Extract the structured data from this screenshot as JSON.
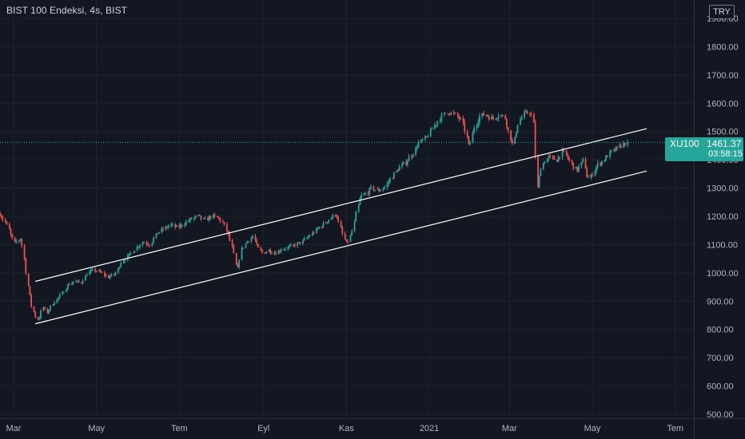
{
  "header": {
    "title": "BIST 100 Endeksi, 4s, BIST",
    "currency": "TRY"
  },
  "price_tag": {
    "symbol": "XU100",
    "value": "1461.37",
    "countdown": "03:58:15"
  },
  "colors": {
    "background": "#131722",
    "grid": "#1e222d",
    "up": "#26a69a",
    "down": "#ef5350",
    "text": "#b2b5be",
    "trendline": "#ffffff",
    "last_price_line": "#26a69a"
  },
  "chart_data": {
    "type": "candlestick",
    "title": "BIST 100 Endeksi, 4s, BIST",
    "xlabel": "",
    "ylabel": "",
    "ylim": [
      500,
      1900
    ],
    "grid": true,
    "y_ticks": [
      500,
      600,
      700,
      800,
      900,
      1000,
      1100,
      1200,
      1300,
      1400,
      1500,
      1600,
      1700,
      1800,
      1900
    ],
    "y_tick_labels": [
      "500.00",
      "600.00",
      "700.00",
      "800.00",
      "900.00",
      "1000.00",
      "1100.00",
      "1200.00",
      "1300.00",
      "1400.00",
      "1500.00",
      "1600.00",
      "1700.00",
      "1800.00",
      "1900.00"
    ],
    "x_range": [
      "2020-02-20",
      "2021-07-10"
    ],
    "x_ticks": [
      {
        "date": "2020-03-01",
        "label": "Mar"
      },
      {
        "date": "2020-05-01",
        "label": "May"
      },
      {
        "date": "2020-07-01",
        "label": "Tem"
      },
      {
        "date": "2020-09-01",
        "label": "Eyl"
      },
      {
        "date": "2020-11-01",
        "label": "Kas"
      },
      {
        "date": "2021-01-01",
        "label": "2021"
      },
      {
        "date": "2021-03-01",
        "label": "Mar"
      },
      {
        "date": "2021-05-01",
        "label": "May"
      },
      {
        "date": "2021-07-01",
        "label": "Tem"
      }
    ],
    "price_path": [
      [
        "2020-02-20",
        1210
      ],
      [
        "2020-02-25",
        1175
      ],
      [
        "2020-02-28",
        1140
      ],
      [
        "2020-03-02",
        1105
      ],
      [
        "2020-03-05",
        1115
      ],
      [
        "2020-03-07",
        1125
      ],
      [
        "2020-03-09",
        1060
      ],
      [
        "2020-03-12",
        955
      ],
      [
        "2020-03-15",
        880
      ],
      [
        "2020-03-18",
        840
      ],
      [
        "2020-03-20",
        835
      ],
      [
        "2020-03-23",
        880
      ],
      [
        "2020-03-26",
        860
      ],
      [
        "2020-03-31",
        895
      ],
      [
        "2020-04-06",
        925
      ],
      [
        "2020-04-10",
        955
      ],
      [
        "2020-04-15",
        970
      ],
      [
        "2020-04-20",
        965
      ],
      [
        "2020-04-25",
        1000
      ],
      [
        "2020-04-30",
        1010
      ],
      [
        "2020-05-05",
        1000
      ],
      [
        "2020-05-10",
        985
      ],
      [
        "2020-05-15",
        995
      ],
      [
        "2020-05-20",
        1040
      ],
      [
        "2020-05-25",
        1060
      ],
      [
        "2020-06-01",
        1095
      ],
      [
        "2020-06-05",
        1110
      ],
      [
        "2020-06-10",
        1100
      ],
      [
        "2020-06-15",
        1140
      ],
      [
        "2020-06-20",
        1155
      ],
      [
        "2020-06-25",
        1170
      ],
      [
        "2020-06-30",
        1160
      ],
      [
        "2020-07-05",
        1175
      ],
      [
        "2020-07-10",
        1190
      ],
      [
        "2020-07-15",
        1200
      ],
      [
        "2020-07-20",
        1185
      ],
      [
        "2020-07-25",
        1200
      ],
      [
        "2020-07-30",
        1195
      ],
      [
        "2020-08-03",
        1175
      ],
      [
        "2020-08-07",
        1130
      ],
      [
        "2020-08-11",
        1060
      ],
      [
        "2020-08-13",
        1000
      ],
      [
        "2020-08-16",
        1080
      ],
      [
        "2020-08-20",
        1110
      ],
      [
        "2020-08-25",
        1130
      ],
      [
        "2020-08-28",
        1090
      ],
      [
        "2020-09-01",
        1070
      ],
      [
        "2020-09-05",
        1080
      ],
      [
        "2020-09-10",
        1070
      ],
      [
        "2020-09-15",
        1085
      ],
      [
        "2020-09-20",
        1090
      ],
      [
        "2020-09-25",
        1100
      ],
      [
        "2020-09-30",
        1110
      ],
      [
        "2020-10-05",
        1130
      ],
      [
        "2020-10-10",
        1150
      ],
      [
        "2020-10-15",
        1170
      ],
      [
        "2020-10-20",
        1190
      ],
      [
        "2020-10-25",
        1210
      ],
      [
        "2020-10-28",
        1160
      ],
      [
        "2020-10-31",
        1120
      ],
      [
        "2020-11-02",
        1100
      ],
      [
        "2020-11-06",
        1150
      ],
      [
        "2020-11-09",
        1220
      ],
      [
        "2020-11-12",
        1270
      ],
      [
        "2020-11-16",
        1280
      ],
      [
        "2020-11-20",
        1300
      ],
      [
        "2020-11-25",
        1290
      ],
      [
        "2020-11-30",
        1305
      ],
      [
        "2020-12-05",
        1340
      ],
      [
        "2020-12-10",
        1370
      ],
      [
        "2020-12-15",
        1390
      ],
      [
        "2020-12-20",
        1420
      ],
      [
        "2020-12-25",
        1460
      ],
      [
        "2020-12-31",
        1480
      ],
      [
        "2021-01-05",
        1520
      ],
      [
        "2021-01-10",
        1550
      ],
      [
        "2021-01-15",
        1570
      ],
      [
        "2021-01-20",
        1560
      ],
      [
        "2021-01-25",
        1540
      ],
      [
        "2021-01-28",
        1500
      ],
      [
        "2021-01-31",
        1440
      ],
      [
        "2021-02-03",
        1510
      ],
      [
        "2021-02-08",
        1555
      ],
      [
        "2021-02-12",
        1560
      ],
      [
        "2021-02-17",
        1545
      ],
      [
        "2021-02-22",
        1560
      ],
      [
        "2021-02-26",
        1550
      ],
      [
        "2021-03-01",
        1500
      ],
      [
        "2021-03-04",
        1450
      ],
      [
        "2021-03-08",
        1530
      ],
      [
        "2021-03-12",
        1560
      ],
      [
        "2021-03-17",
        1570
      ],
      [
        "2021-03-19",
        1540
      ],
      [
        "2021-03-22",
        1300
      ],
      [
        "2021-03-25",
        1380
      ],
      [
        "2021-03-30",
        1410
      ],
      [
        "2021-04-05",
        1400
      ],
      [
        "2021-04-10",
        1430
      ],
      [
        "2021-04-15",
        1395
      ],
      [
        "2021-04-20",
        1360
      ],
      [
        "2021-04-25",
        1400
      ],
      [
        "2021-04-28",
        1330
      ],
      [
        "2021-05-01",
        1345
      ],
      [
        "2021-05-05",
        1380
      ],
      [
        "2021-05-10",
        1400
      ],
      [
        "2021-05-15",
        1425
      ],
      [
        "2021-05-20",
        1440
      ],
      [
        "2021-05-24",
        1455
      ],
      [
        "2021-05-27",
        1461.37
      ]
    ],
    "trendlines": [
      {
        "from": [
          "2020-03-17",
          970
        ],
        "to": [
          "2021-06-10",
          1510
        ]
      },
      {
        "from": [
          "2020-03-17",
          820
        ],
        "to": [
          "2021-06-10",
          1360
        ]
      }
    ],
    "last_price": 1461.37
  }
}
